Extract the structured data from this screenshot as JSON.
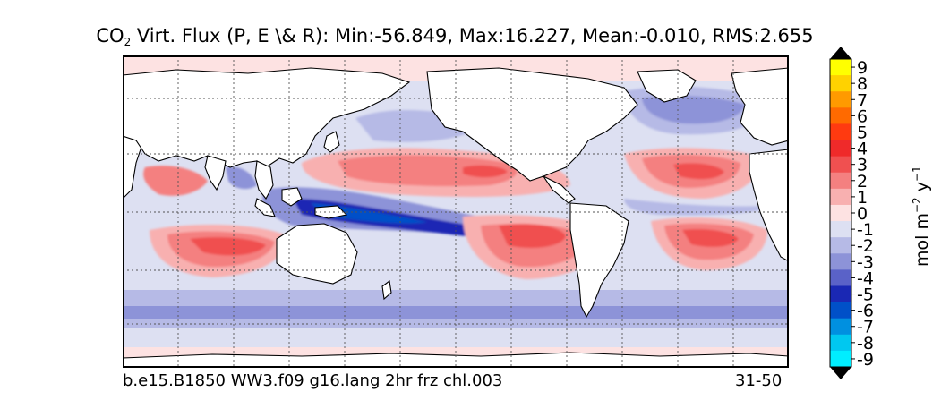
{
  "chart_data": {
    "type": "heatmap",
    "title": {
      "species": "CO",
      "species_sub": "2",
      "text": " Virt. Flux (P, E \\& R): Min:-56.849, Max:16.227, Mean:-0.010, RMS:2.655"
    },
    "stats": {
      "min": -56.849,
      "max": 16.227,
      "mean": -0.01,
      "rms": 2.655
    },
    "caption_left": "b.e15.B1850 WW3.f09 g16.lang 2hr frz chl.003",
    "caption_right": "31-50",
    "colorbar": {
      "unit_label": "mol m",
      "unit_exp1": "−2",
      "unit_mid": " y",
      "unit_exp2": "−1",
      "levels": [
        -9,
        -8,
        -7,
        -6,
        -5,
        -4,
        -3,
        -2,
        -1,
        0,
        1,
        2,
        3,
        4,
        5,
        6,
        7,
        8,
        9
      ],
      "tick_labels": [
        "9",
        "8",
        "7",
        "6",
        "5",
        "4",
        "3",
        "2",
        "1",
        "0",
        "-1",
        "-2",
        "-3",
        "-4",
        "-5",
        "-6",
        "-7",
        "-8",
        "-9"
      ],
      "colors_top_to_bottom": [
        "#ffff00",
        "#ffd200",
        "#ff9a00",
        "#ff6a00",
        "#ff3a10",
        "#ef2a2a",
        "#f05050",
        "#f48080",
        "#f8b0b0",
        "#fde2e2",
        "#dde0f2",
        "#b6bae6",
        "#8d93d8",
        "#5a62c8",
        "#1a28b4",
        "#0050c8",
        "#0090e0",
        "#00c8f0",
        "#00eeff"
      ],
      "extend_max_color": "#000000",
      "extend_min_color": "#000000"
    },
    "map": {
      "projection": "cylindrical",
      "grid": true,
      "land_color": "#ffffff",
      "ocean_background": "#dde0f2"
    }
  }
}
